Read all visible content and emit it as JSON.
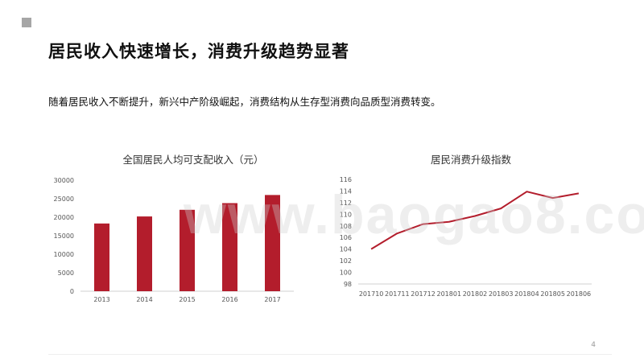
{
  "slide": {
    "title": "居民收入快速增长，消费升级趋势显著",
    "subtitle": "随着居民收入不断提升，新兴中产阶级崛起，消费结构从生存型消费向品质型消费转变。",
    "page_number": "4",
    "watermark": "www.baogao8.com"
  },
  "colors": {
    "accent": "#b31d2c",
    "corner": "#a6a6a6"
  },
  "chart_data": [
    {
      "type": "bar",
      "title": "全国居民人均可支配收入（元）",
      "categories": [
        "2013",
        "2014",
        "2015",
        "2016",
        "2017"
      ],
      "values": [
        18300,
        20200,
        22000,
        23800,
        26000
      ],
      "yticks": [
        0,
        5000,
        10000,
        15000,
        20000,
        25000,
        30000
      ],
      "ylim": [
        0,
        30000
      ],
      "xlabel": "",
      "ylabel": "",
      "grid": false
    },
    {
      "type": "line",
      "title": "居民消费升级指数",
      "categories": [
        "201710",
        "201711",
        "201712",
        "201801",
        "201802",
        "201803",
        "201804",
        "201805",
        "201806"
      ],
      "values": [
        104.0,
        106.7,
        108.3,
        108.7,
        109.7,
        111.0,
        113.9,
        112.8,
        113.6
      ],
      "yticks": [
        98,
        100,
        102,
        104,
        106,
        108,
        110,
        112,
        114,
        116
      ],
      "ylim": [
        98,
        116
      ],
      "xlabel": "",
      "ylabel": "",
      "grid": false
    }
  ]
}
